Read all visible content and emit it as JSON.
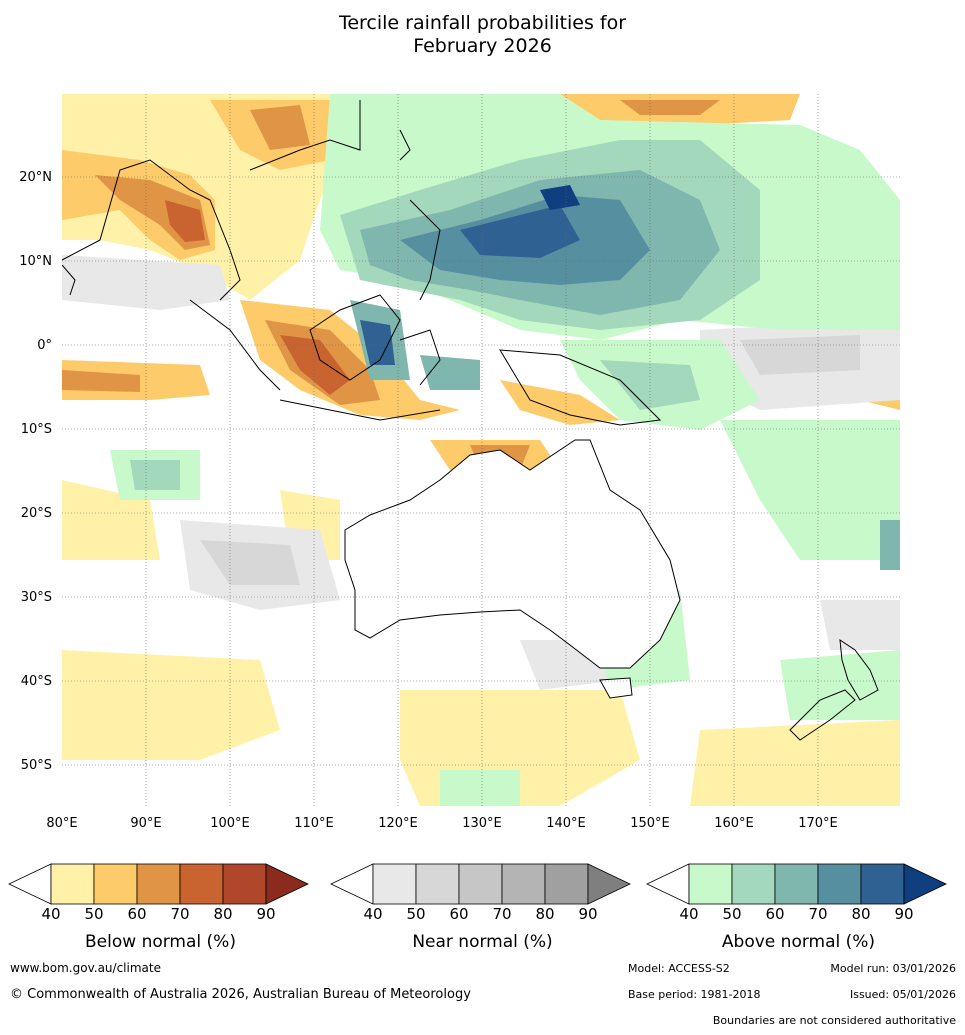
{
  "title": {
    "line1": "Tercile rainfall probabilities for",
    "line2": "February 2026"
  },
  "map": {
    "lon_labels": [
      "80°E",
      "90°E",
      "100°E",
      "110°E",
      "120°E",
      "130°E",
      "140°E",
      "150°E",
      "160°E",
      "170°E"
    ],
    "lat_labels": [
      "20°N",
      "10°N",
      "0°",
      "10°S",
      "20°S",
      "30°S",
      "40°S",
      "50°S"
    ]
  },
  "colorbars": [
    {
      "label": "Below normal (%)",
      "ticks": [
        "40",
        "50",
        "60",
        "70",
        "80",
        "90"
      ],
      "colors": [
        "#fff1a8",
        "#fdcb6a",
        "#e09446",
        "#c9632f",
        "#b0472a",
        "#8b2b1e"
      ]
    },
    {
      "label": "Near normal (%)",
      "ticks": [
        "40",
        "50",
        "60",
        "70",
        "80",
        "90"
      ],
      "colors": [
        "#e8e8e8",
        "#d7d7d7",
        "#c6c6c6",
        "#b4b4b4",
        "#a0a0a0",
        "#7f7f7f"
      ]
    },
    {
      "label": "Above normal (%)",
      "ticks": [
        "40",
        "50",
        "60",
        "70",
        "80",
        "90"
      ],
      "colors": [
        "#c8f9cb",
        "#a4d8bd",
        "#7fb6ae",
        "#5690a0",
        "#2f6293",
        "#0f3f7f"
      ]
    }
  ],
  "footer": {
    "website": "www.bom.gov.au/climate",
    "copyright": "© Commonwealth of Australia 2026, Australian Bureau of Meteorology",
    "model": "Model: ACCESS-S2",
    "model_run": "Model run: 03/01/2026",
    "base_period": "Base period: 1981-2018",
    "issued": "Issued: 05/01/2026",
    "disclaimer": "Boundaries are not considered authoritative"
  }
}
